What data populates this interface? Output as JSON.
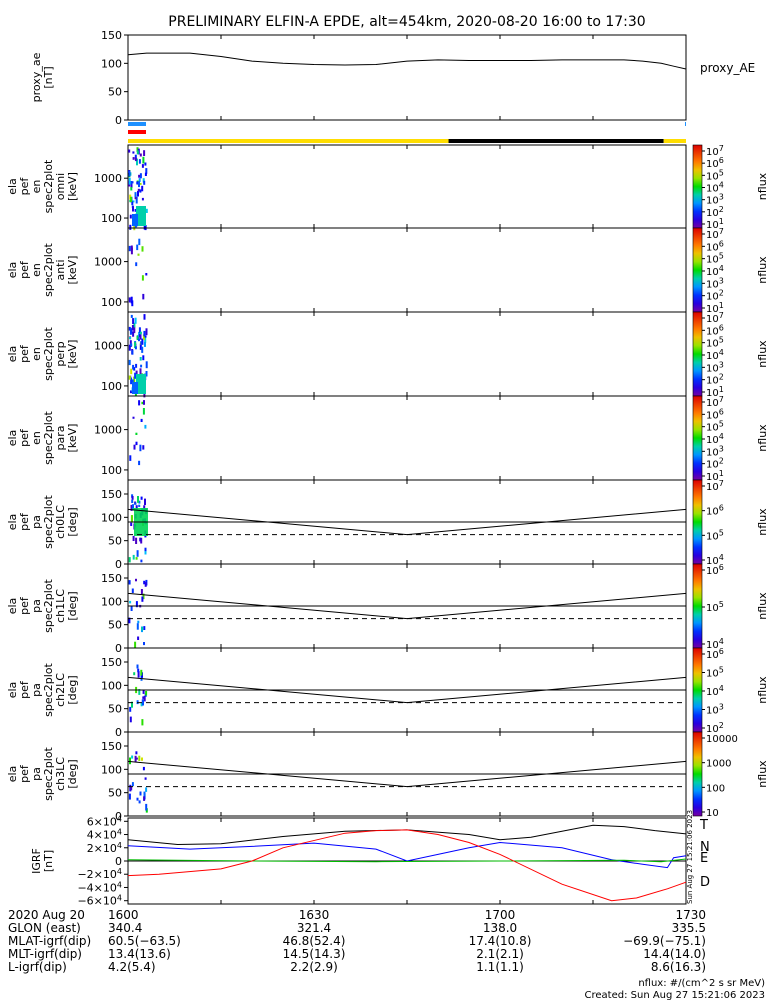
{
  "title": "PRELIMINARY ELFIN-A EPDE, alt=454km, 2020-08-20 16:00 to 17:30",
  "chart_data": [
    {
      "type": "line",
      "id": "proxy_ae",
      "ylabel_lines": [
        "proxy_ae",
        "[nT]"
      ],
      "legend": "proxy_AE",
      "ylim": [
        0,
        150
      ],
      "y_ticks": [
        "150",
        "100",
        "50",
        "0"
      ],
      "x_range_minutes": [
        0,
        90
      ],
      "series": [
        {
          "name": "proxy_AE",
          "x": [
            0,
            3,
            10,
            15,
            20,
            25,
            30,
            35,
            40,
            45,
            50,
            55,
            60,
            65,
            70,
            75,
            80,
            83,
            86,
            88,
            90
          ],
          "y": [
            115,
            118,
            118,
            112,
            104,
            100,
            98,
            97,
            98,
            104,
            106,
            105,
            105,
            105,
            106,
            106,
            106,
            104,
            100,
            95,
            90
          ]
        }
      ]
    },
    {
      "type": "heatmap",
      "id": "omni",
      "ylabel_lines": [
        "ela",
        "pef",
        "en",
        "spec2plot",
        "omni",
        "[keV]"
      ],
      "y_scale": "log",
      "y_ticks": [
        "1000",
        "100"
      ],
      "colorbar": {
        "label": "nflux",
        "ticks": [
          "10^7",
          "10^6",
          "10^5",
          "10^4",
          "10^3",
          "10^2",
          "10^1"
        ]
      }
    },
    {
      "type": "heatmap",
      "id": "anti",
      "ylabel_lines": [
        "ela",
        "pef",
        "en",
        "spec2plot",
        "anti",
        "[keV]"
      ],
      "y_scale": "log",
      "y_ticks": [
        "1000",
        "100"
      ],
      "colorbar": {
        "label": "nflux",
        "ticks": [
          "10^7",
          "10^6",
          "10^5",
          "10^4",
          "10^3",
          "10^2",
          "10^1"
        ]
      }
    },
    {
      "type": "heatmap",
      "id": "perp",
      "ylabel_lines": [
        "ela",
        "pef",
        "en",
        "spec2plot",
        "perp",
        "[keV]"
      ],
      "y_scale": "log",
      "y_ticks": [
        "1000",
        "100"
      ],
      "colorbar": {
        "label": "nflux",
        "ticks": [
          "10^7",
          "10^6",
          "10^5",
          "10^4",
          "10^3",
          "10^2",
          "10^1"
        ]
      }
    },
    {
      "type": "heatmap",
      "id": "para",
      "ylabel_lines": [
        "ela",
        "pef",
        "en",
        "spec2plot",
        "para",
        "[keV]"
      ],
      "y_scale": "log",
      "y_ticks": [
        "1000",
        "100"
      ],
      "colorbar": {
        "label": "nflux",
        "ticks": [
          "10^7",
          "10^6",
          "10^5",
          "10^4",
          "10^3",
          "10^2",
          "10^1"
        ]
      }
    },
    {
      "type": "heatmap",
      "id": "ch0",
      "ylabel_lines": [
        "ela",
        "pef",
        "pa",
        "spec2plot",
        "ch0LC",
        "[deg]"
      ],
      "ylim": [
        0,
        180
      ],
      "y_ticks": [
        "150",
        "100",
        "50",
        "0"
      ],
      "lc_lines": {
        "x": [
          0,
          45,
          90
        ],
        "solid": [
          117,
          63,
          117
        ],
        "dashed": [
          63
        ]
      },
      "colorbar": {
        "label": "nflux",
        "ticks": [
          "10^7",
          "10^6",
          "10^5",
          "10^4"
        ]
      }
    },
    {
      "type": "heatmap",
      "id": "ch1",
      "ylabel_lines": [
        "ela",
        "pef",
        "pa",
        "spec2plot",
        "ch1LC",
        "[deg]"
      ],
      "ylim": [
        0,
        180
      ],
      "y_ticks": [
        "150",
        "100",
        "50",
        "0"
      ],
      "lc_lines": {
        "x": [
          0,
          45,
          90
        ],
        "solid": [
          117,
          63,
          117
        ],
        "dashed": [
          63
        ]
      },
      "colorbar": {
        "label": "nflux",
        "ticks": [
          "10^6",
          "10^5",
          "10^4"
        ]
      }
    },
    {
      "type": "heatmap",
      "id": "ch2",
      "ylabel_lines": [
        "ela",
        "pef",
        "pa",
        "spec2plot",
        "ch2LC",
        "[deg]"
      ],
      "ylim": [
        0,
        180
      ],
      "y_ticks": [
        "150",
        "100",
        "50",
        "0"
      ],
      "lc_lines": {
        "x": [
          0,
          45,
          90
        ],
        "solid": [
          117,
          63,
          117
        ],
        "dashed": [
          63
        ]
      },
      "colorbar": {
        "label": "nflux",
        "ticks": [
          "10^6",
          "10^5",
          "10^4",
          "10^3",
          "10^2"
        ]
      }
    },
    {
      "type": "heatmap",
      "id": "ch3",
      "ylabel_lines": [
        "ela",
        "pef",
        "pa",
        "spec2plot",
        "ch3LC",
        "[deg]"
      ],
      "ylim": [
        0,
        180
      ],
      "y_ticks": [
        "150",
        "100",
        "50",
        "0"
      ],
      "lc_lines": {
        "x": [
          0,
          45,
          90
        ],
        "solid": [
          117,
          63,
          117
        ],
        "dashed": [
          63
        ]
      },
      "colorbar": {
        "label": "nflux",
        "ticks": [
          "10000",
          "1000",
          "100",
          "10"
        ]
      }
    },
    {
      "type": "line",
      "id": "igrf",
      "ylabel_lines": [
        "IGRF",
        "[nT]"
      ],
      "ylim": [
        -65000,
        65000
      ],
      "y_ticks": [
        "6×10^4",
        "4×10^4",
        "2×10^4",
        "0",
        "−2×10^4",
        "−4×10^4",
        "−6×10^4"
      ],
      "side_note": "Sun Aug 27 15:21:06 2023",
      "series": [
        {
          "name": "T",
          "color": "#000000",
          "x": [
            0,
            8,
            15,
            25,
            35,
            45,
            55,
            60,
            65,
            75,
            80,
            85,
            90
          ],
          "y": [
            32000,
            25000,
            26000,
            37000,
            45000,
            47000,
            40000,
            32000,
            36000,
            54000,
            52000,
            46000,
            41000
          ]
        },
        {
          "name": "N",
          "color": "#0000ff",
          "x": [
            0,
            10,
            20,
            30,
            40,
            45,
            50,
            55,
            60,
            70,
            78,
            83,
            87,
            88,
            90
          ],
          "y": [
            23000,
            18000,
            22000,
            27000,
            18000,
            0,
            10000,
            20000,
            28000,
            20000,
            2000,
            -5000,
            -10000,
            5000,
            8000
          ]
        },
        {
          "name": "E",
          "color": "#00bb00",
          "x": [
            0,
            20,
            40,
            60,
            80,
            86,
            90
          ],
          "y": [
            2000,
            0,
            -1000,
            0,
            1000,
            -1000,
            3000
          ]
        },
        {
          "name": "D",
          "color": "#ff0000",
          "x": [
            0,
            5,
            15,
            20,
            25,
            35,
            40,
            45,
            50,
            55,
            60,
            70,
            78,
            82,
            87,
            90
          ],
          "y": [
            -22000,
            -20000,
            -12000,
            0,
            20000,
            42000,
            46000,
            47000,
            40000,
            28000,
            10000,
            -35000,
            -60000,
            -56000,
            -42000,
            -32000
          ]
        }
      ],
      "legend": [
        "T",
        "N",
        "E",
        "D"
      ]
    }
  ],
  "x_axis": {
    "row_labels": [
      "2020 Aug 20",
      "GLON (east)",
      "MLAT-igrf(dip)",
      "MLT-igrf(dip)",
      "L-igrf(dip)"
    ],
    "columns": [
      {
        "time": "1600",
        "glon": "340.4",
        "mlat": "60.5(−63.5)",
        "mlt": "13.4(13.6)",
        "l": "4.2(5.4)"
      },
      {
        "time": "1630",
        "glon": "321.4",
        "mlat": "46.8(52.4)",
        "mlt": "14.5(14.3)",
        "l": "2.2(2.9)"
      },
      {
        "time": "1700",
        "glon": "138.0",
        "mlat": "17.4(10.8)",
        "mlt": "2.1(2.1)",
        "l": "1.1(1.1)"
      },
      {
        "time": "1730",
        "glon": "335.5",
        "mlat": "−69.9(−75.1)",
        "mlt": "14.4(14.0)",
        "l": "8.6(16.3)"
      }
    ]
  },
  "footer": {
    "units": "nflux: #/(cm^2 s sr MeV)",
    "created": "Created: Sun Aug 27 15:21:06 2023"
  }
}
